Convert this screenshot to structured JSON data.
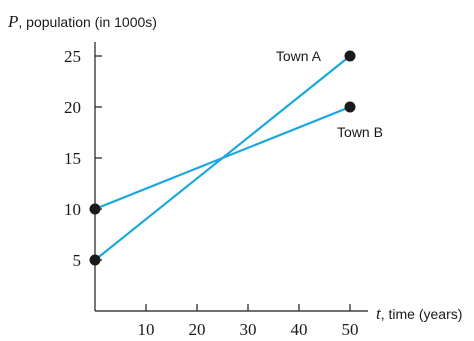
{
  "chart_data": {
    "type": "line",
    "x_axis": {
      "variable": "t",
      "label": ", time (years)",
      "range": [
        0,
        50
      ],
      "ticks": [
        10,
        20,
        30,
        40,
        50
      ]
    },
    "y_axis": {
      "variable": "P",
      "label": ", population (in 1000s)",
      "range": [
        0,
        25
      ],
      "ticks": [
        5,
        10,
        15,
        20,
        25
      ]
    },
    "grid": false,
    "line_color": "#1aa7e0",
    "point_color": "#1a1a1a",
    "series": [
      {
        "name": "Town A",
        "points": [
          [
            0,
            5
          ],
          [
            50,
            25
          ]
        ]
      },
      {
        "name": "Town B",
        "points": [
          [
            0,
            10
          ],
          [
            50,
            20
          ]
        ]
      }
    ]
  }
}
